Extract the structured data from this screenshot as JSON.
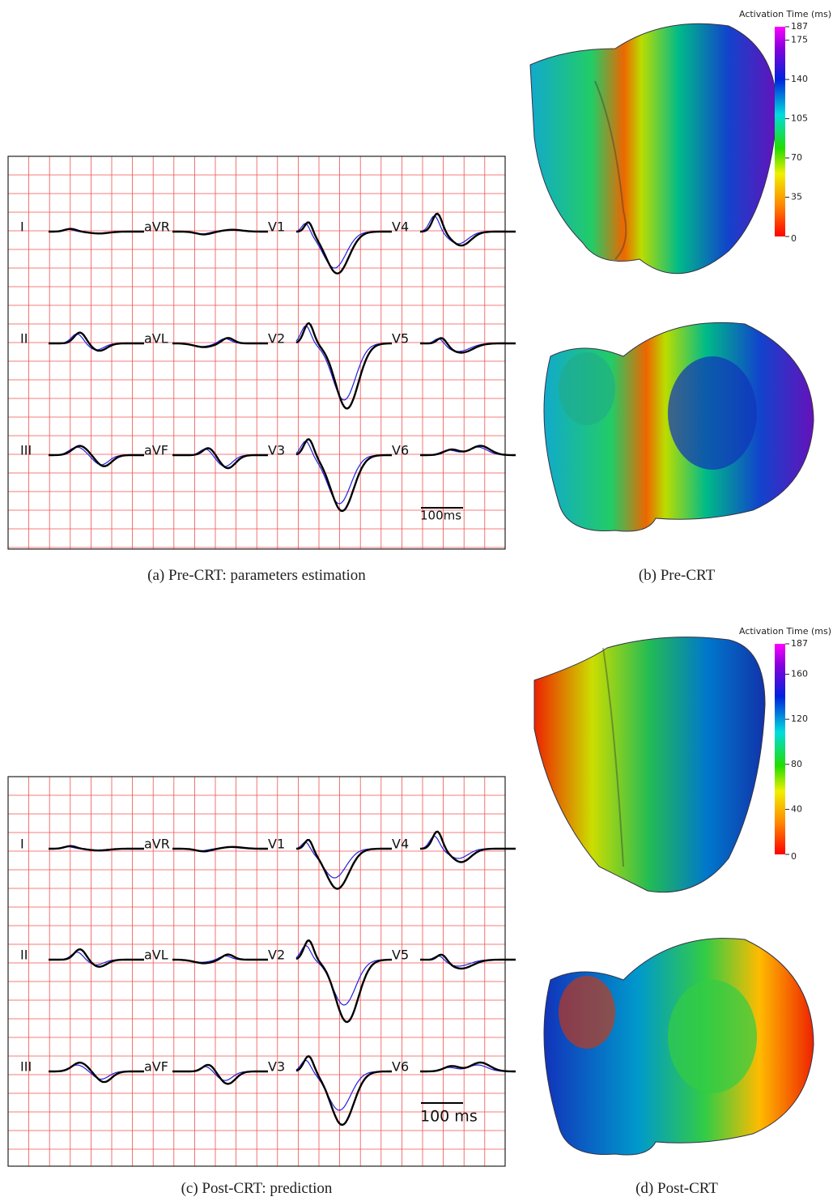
{
  "rows": [
    {
      "ecg": {
        "leads": [
          "I",
          "aVR",
          "V1",
          "V4",
          "II",
          "aVL",
          "V2",
          "V5",
          "III",
          "aVF",
          "V3",
          "V6"
        ],
        "scale_bar": "100ms",
        "caption": "(a) Pre-CRT: parameters estimation"
      },
      "heart": {
        "colorbar_title": "Activation Time (ms)",
        "colorbar_ticks": [
          0,
          35,
          70,
          105,
          140,
          175,
          187
        ],
        "caption": "(b) Pre-CRT"
      }
    },
    {
      "ecg": {
        "leads": [
          "I",
          "aVR",
          "V1",
          "V4",
          "II",
          "aVL",
          "V2",
          "V5",
          "III",
          "aVF",
          "V3",
          "V6"
        ],
        "scale_bar": "100 ms",
        "caption": "(c) Post-CRT: prediction"
      },
      "heart": {
        "colorbar_title": "Activation Time (ms)",
        "colorbar_ticks": [
          0,
          40,
          80,
          120,
          160,
          187
        ],
        "caption": "(d) Post-CRT"
      }
    }
  ]
}
